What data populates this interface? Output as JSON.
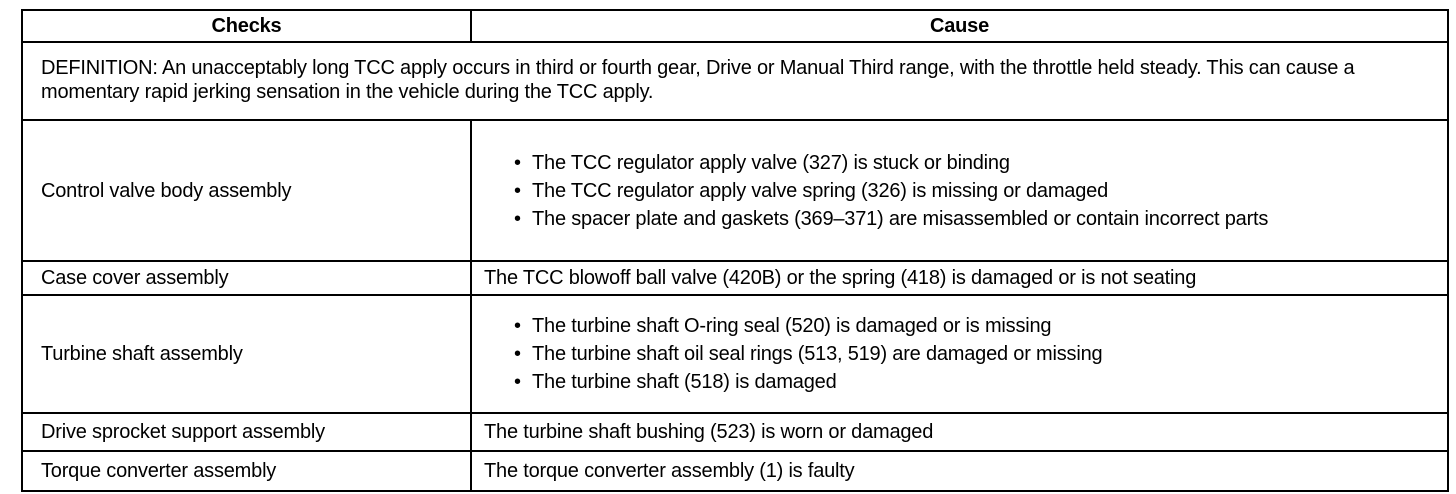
{
  "headers": {
    "checks": "Checks",
    "cause": "Cause"
  },
  "definition": "DEFINITION: An unacceptably long TCC apply occurs in third or fourth gear, Drive or Manual Third range, with the throttle held steady. This can cause a momentary rapid jerking sensation in the vehicle during the TCC apply.",
  "rows": [
    {
      "check": "Control valve body assembly",
      "causes": [
        "The TCC regulator apply valve (327) is stuck or binding",
        "The TCC regulator apply valve spring (326) is missing or damaged",
        "The spacer plate and gaskets (369–371) are misassembled or contain incorrect parts"
      ]
    },
    {
      "check": "Case cover assembly",
      "cause": "The TCC blowoff ball valve (420B) or the spring (418) is damaged or is not seating"
    },
    {
      "check": "Turbine shaft assembly",
      "causes": [
        "The turbine shaft O-ring seal (520) is damaged or is missing",
        "The turbine shaft oil seal rings (513, 519) are damaged or missing",
        "The turbine shaft (518) is damaged"
      ]
    },
    {
      "check": "Drive sprocket support assembly",
      "cause": "The turbine shaft bushing (523) is worn or damaged"
    },
    {
      "check": "Torque converter assembly",
      "cause": "The torque converter assembly (1) is faulty"
    }
  ],
  "bullet": "•"
}
